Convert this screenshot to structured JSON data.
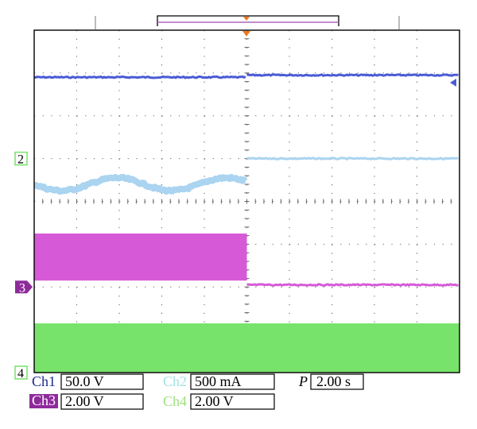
{
  "colors": {
    "ch1": "#4a5bd6",
    "ch2": "#aad4f0",
    "ch3": "#d65ad8",
    "ch4": "#77e36a",
    "ch2_label": "#9fe3e3",
    "ch3_badge": "#8e2b9b",
    "ch4_label": "#9ee07a",
    "ch1_label": "#1a2a8a",
    "trigger_marker": "#f07820",
    "position_bar": "#b066c0",
    "grid": "#666666"
  },
  "chart_data": {
    "type": "line",
    "time_per_division_s": 2.0,
    "x_divisions": 10,
    "y_divisions": 8,
    "x_range_s": [
      0,
      20
    ],
    "trigger_time_s": 10,
    "grid": true,
    "series": [
      {
        "key": "ch1",
        "segments": [
          {
            "t": [
              0,
              10
            ],
            "level_div": 2.9
          },
          {
            "t": [
              10,
              20
            ],
            "level_div": 2.95
          }
        ]
      },
      {
        "key": "ch2",
        "segments": [
          {
            "t": [
              0,
              10
            ],
            "level_div": 0.4,
            "ripple_div": 0.15
          },
          {
            "t": [
              10,
              20
            ],
            "level_div": 1.0
          }
        ]
      },
      {
        "key": "ch3",
        "segments": [
          {
            "t": [
              0,
              10
            ],
            "band_div": [
              -1.85,
              -0.75
            ]
          },
          {
            "t": [
              10,
              20
            ],
            "level_div": -1.95
          }
        ]
      },
      {
        "key": "ch4",
        "segments": [
          {
            "t": [
              0,
              20
            ],
            "band_div": [
              -4.0,
              -2.85
            ]
          }
        ]
      }
    ],
    "channel_markers": [
      {
        "label": "2",
        "level_div": 1.0
      },
      {
        "label": "3",
        "level_div": -2.0
      },
      {
        "label": "4",
        "level_div": -4.0
      }
    ]
  },
  "readout": {
    "ch1_name": "Ch1",
    "ch1_scale": "50.0 V",
    "ch2_name": "Ch2",
    "ch2_scale": "500 mA",
    "ch3_name": "Ch3",
    "ch3_scale": "2.00 V",
    "ch4_name": "Ch4",
    "ch4_scale": "2.00 V",
    "time_label": "P",
    "time_scale": "2.00 s"
  }
}
